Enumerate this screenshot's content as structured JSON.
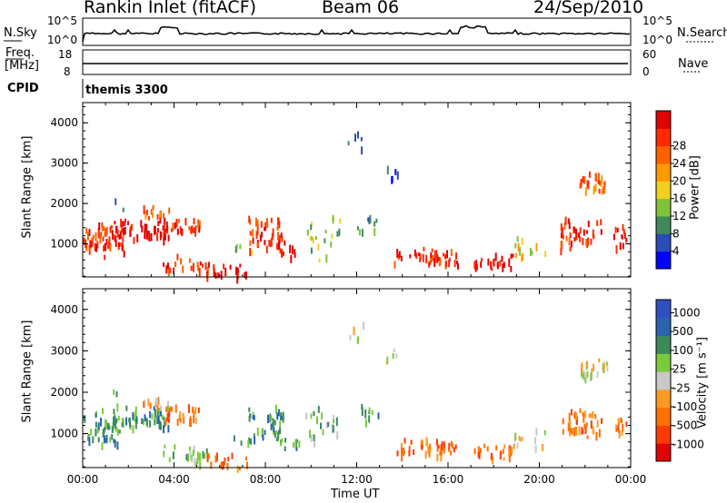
{
  "header": {
    "station": "Rankin Inlet (fitACF)",
    "beam": "Beam 06",
    "date": "24/Sep/2010"
  },
  "status_panel": {
    "nsky_label": "N.Sky",
    "left_ticks": [
      "10^5",
      "10^0"
    ],
    "right_ticks": [
      "10^5",
      "10^0"
    ],
    "nsearch_label": "N.Search",
    "freq_label_1": "Freq.",
    "freq_label_2": "[MHz]",
    "freq_ticks": [
      "18",
      "8"
    ],
    "nave_ticks": [
      "60",
      "0"
    ],
    "nave_label": "Nave",
    "cpid_label": "CPID",
    "cpid_value": "themis 3300"
  },
  "colors": {
    "power": [
      "#0000ff",
      "#2a4cb8",
      "#3f8a5c",
      "#7fc23a",
      "#f0d020",
      "#ff9a00",
      "#ff6000",
      "#ff2a00",
      "#e00000"
    ],
    "velocity": [
      "#3050c0",
      "#2a64b0",
      "#3a8a5a",
      "#7acb3a",
      "#c8c8c8",
      "#ff9a20",
      "#ff7000",
      "#ff3a00",
      "#e00000"
    ]
  },
  "chart_data": [
    {
      "type": "heatmap",
      "title": "Power",
      "ylabel": "Slant Range [km]",
      "xlabel": "",
      "x_ticks": [
        "00:00",
        "04:00",
        "08:00",
        "12:00",
        "16:00",
        "20:00",
        "00:00"
      ],
      "y_ticks": [
        "1000",
        "2000",
        "3000",
        "4000"
      ],
      "ylim": [
        180,
        4500
      ],
      "colorbar_label": "Power [dB]",
      "colorbar_ticks": [
        "4",
        "8",
        "12",
        "16",
        "20",
        "24",
        "28"
      ]
    },
    {
      "type": "heatmap",
      "title": "Velocity",
      "ylabel": "Slant Range [km]",
      "xlabel": "Time UT",
      "x_ticks": [
        "00:00",
        "04:00",
        "08:00",
        "12:00",
        "16:00",
        "20:00",
        "00:00"
      ],
      "y_ticks": [
        "1000",
        "2000",
        "3000",
        "4000"
      ],
      "ylim": [
        180,
        4500
      ],
      "colorbar_label": "Velocity [m s⁻¹]",
      "colorbar_ticks": [
        "1000",
        "500",
        "100",
        "25",
        "-25",
        "-100",
        "-500",
        "-1000"
      ]
    }
  ]
}
